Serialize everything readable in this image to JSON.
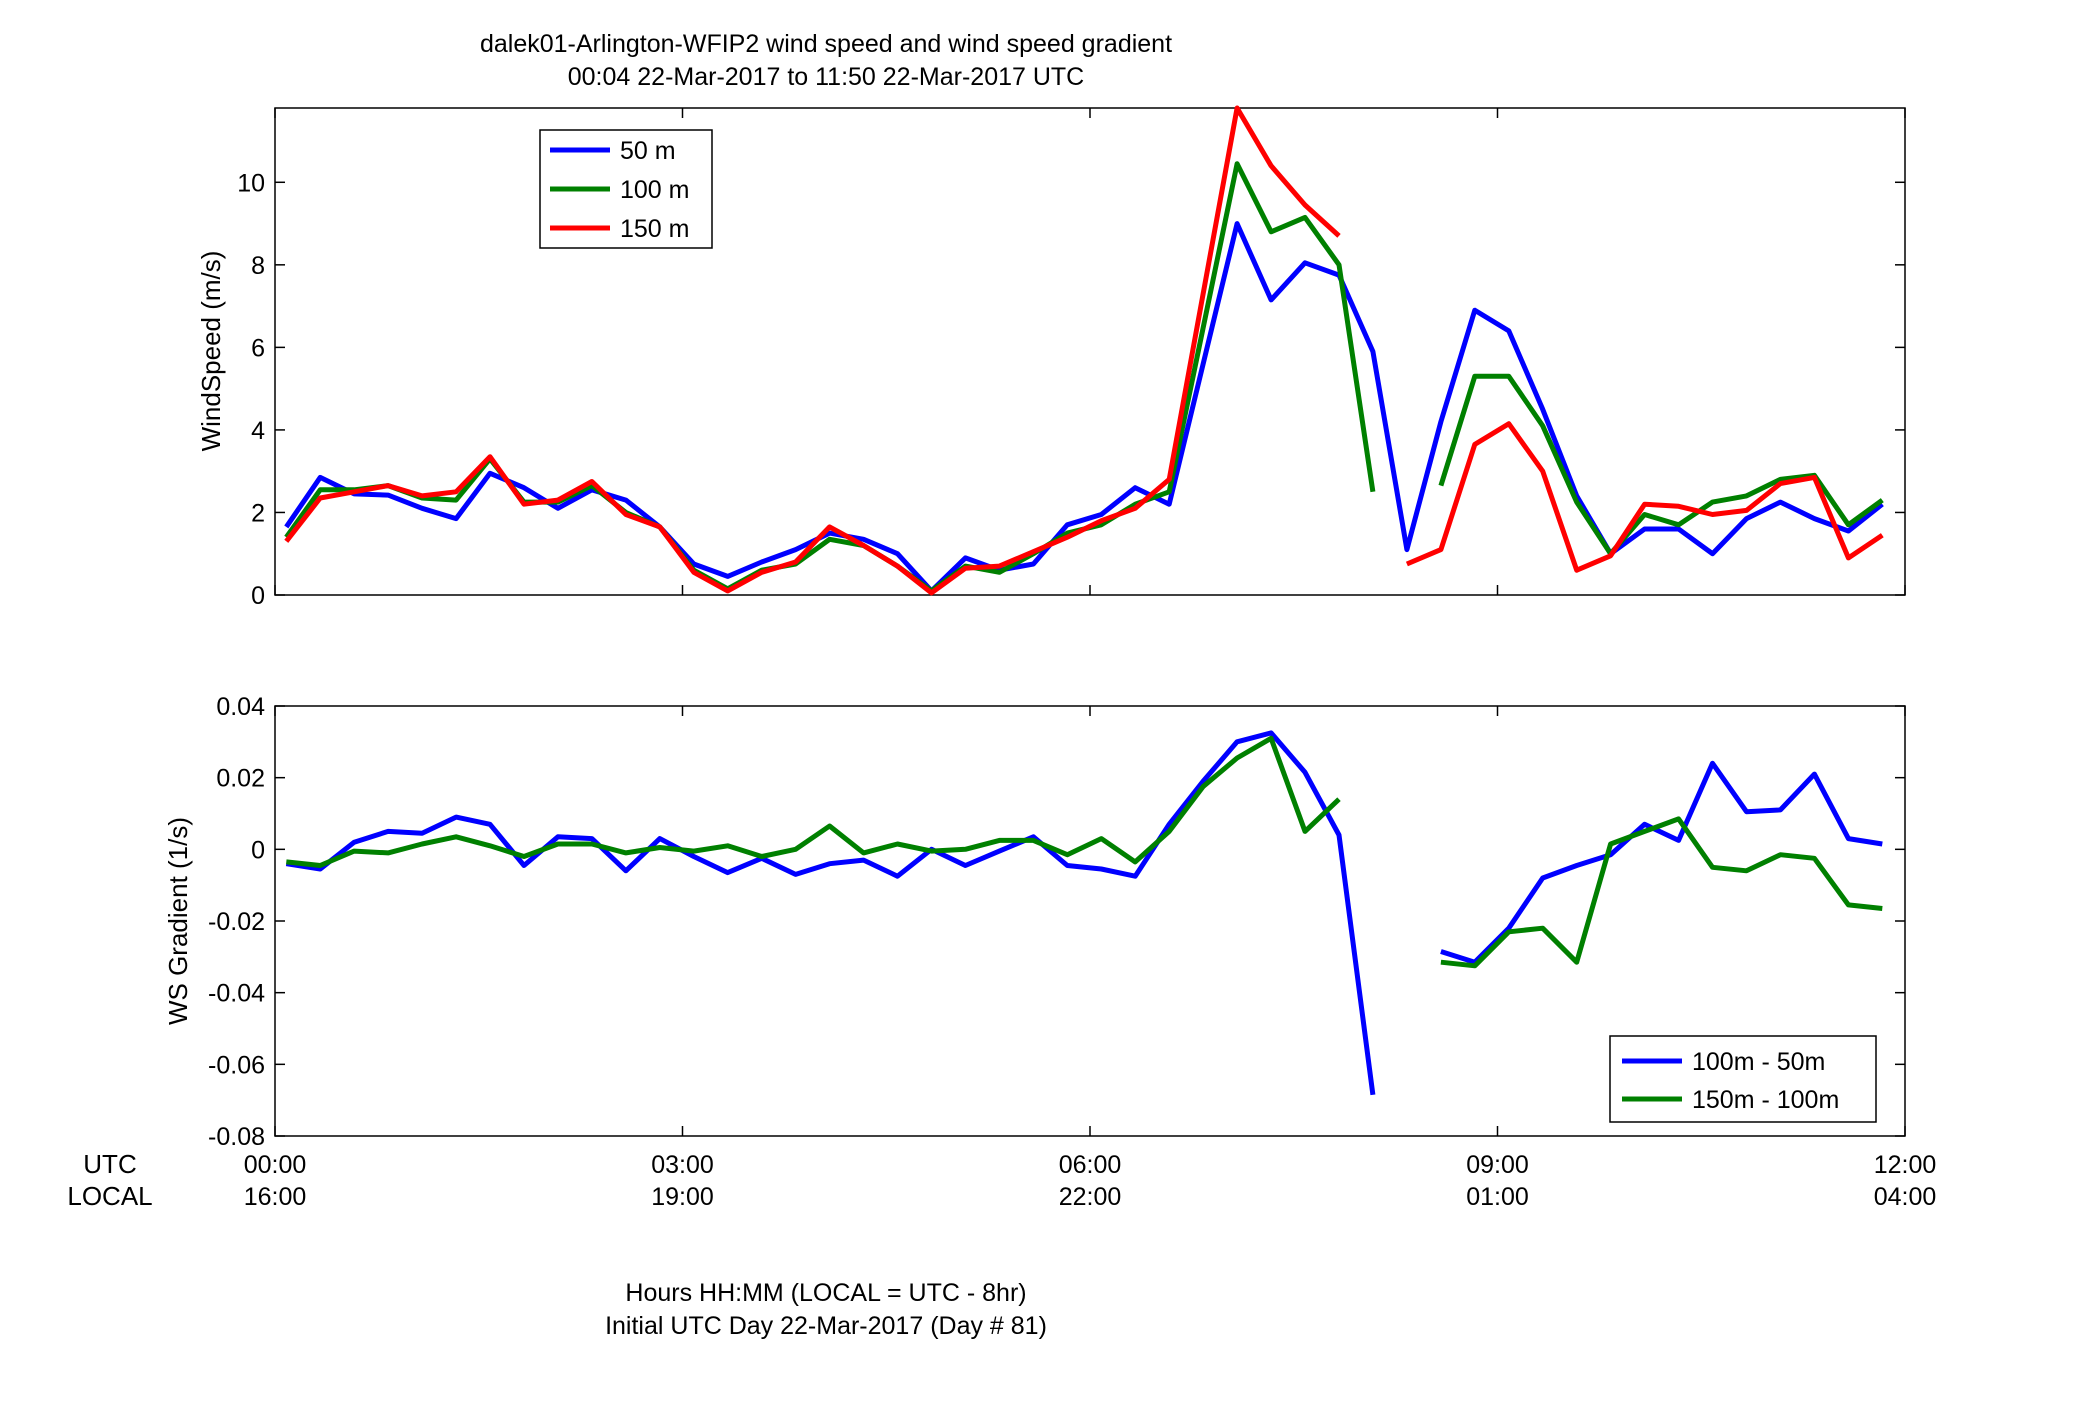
{
  "figure": {
    "title_line1": "dalek01-Arlington-WFIP2  wind speed and wind speed gradient",
    "title_line2": "00:04 22-Mar-2017 to 11:50 22-Mar-2017  UTC",
    "xlabel_line1": "Hours HH:MM  (LOCAL = UTC - 8hr)",
    "xlabel_line2": "Initial UTC Day 22-Mar-2017 (Day # 81)",
    "row_label_utc": "UTC",
    "row_label_local": "LOCAL",
    "utc_ticks": [
      "00:00",
      "03:00",
      "06:00",
      "09:00",
      "12:00"
    ],
    "local_ticks": [
      "16:00",
      "19:00",
      "22:00",
      "01:00",
      "04:00"
    ]
  },
  "chart_data": [
    {
      "type": "line",
      "ylabel": "WindSpeed (m/s)",
      "xlim": [
        0,
        12
      ],
      "ylim": [
        0,
        11.8
      ],
      "yticks": [
        0,
        2,
        4,
        6,
        8,
        10
      ],
      "legend_position": "top-left",
      "series": [
        {
          "name": "50 m",
          "color": "#0000ff",
          "points": [
            [
              0.083,
              1.65
            ],
            [
              0.333,
              2.85
            ],
            [
              0.583,
              2.45
            ],
            [
              0.833,
              2.42
            ],
            [
              1.083,
              2.1
            ],
            [
              1.333,
              1.85
            ],
            [
              1.583,
              2.95
            ],
            [
              1.833,
              2.6
            ],
            [
              2.083,
              2.1
            ],
            [
              2.333,
              2.55
            ],
            [
              2.583,
              2.3
            ],
            [
              2.833,
              1.65
            ],
            [
              3.083,
              0.75
            ],
            [
              3.333,
              0.45
            ],
            [
              3.583,
              0.8
            ],
            [
              3.833,
              1.1
            ],
            [
              4.083,
              1.5
            ],
            [
              4.333,
              1.35
            ],
            [
              4.583,
              1.0
            ],
            [
              4.833,
              0.1
            ],
            [
              5.083,
              0.9
            ],
            [
              5.333,
              0.6
            ],
            [
              5.583,
              0.75
            ],
            [
              5.833,
              1.7
            ],
            [
              6.083,
              1.95
            ],
            [
              6.333,
              2.6
            ],
            [
              6.583,
              2.2
            ],
            [
              7.083,
              9.0
            ],
            [
              7.333,
              7.15
            ],
            [
              7.583,
              8.05
            ],
            [
              7.833,
              7.75
            ],
            [
              8.083,
              5.9
            ],
            [
              8.333,
              1.1
            ],
            [
              8.583,
              4.2
            ],
            [
              8.833,
              6.9
            ],
            [
              9.083,
              6.4
            ],
            [
              9.333,
              4.5
            ],
            [
              9.583,
              2.4
            ],
            [
              9.833,
              1.0
            ],
            [
              10.083,
              1.6
            ],
            [
              10.333,
              1.6
            ],
            [
              10.583,
              1.0
            ],
            [
              10.833,
              1.85
            ],
            [
              11.083,
              2.25
            ],
            [
              11.333,
              1.85
            ],
            [
              11.583,
              1.55
            ],
            [
              11.833,
              2.2
            ]
          ]
        },
        {
          "name": "100 m",
          "color": "#008000",
          "points": [
            [
              0.083,
              1.4
            ],
            [
              0.333,
              2.55
            ],
            [
              0.583,
              2.55
            ],
            [
              0.833,
              2.65
            ],
            [
              1.083,
              2.35
            ],
            [
              1.333,
              2.3
            ],
            [
              1.583,
              3.3
            ],
            [
              1.833,
              2.25
            ],
            [
              2.083,
              2.25
            ],
            [
              2.333,
              2.65
            ],
            [
              2.583,
              2.0
            ],
            [
              2.833,
              1.65
            ],
            [
              3.083,
              0.6
            ],
            [
              3.333,
              0.15
            ],
            [
              3.583,
              0.6
            ],
            [
              3.833,
              0.75
            ],
            [
              4.083,
              1.35
            ],
            [
              4.333,
              1.2
            ],
            [
              4.583,
              0.7
            ],
            [
              4.833,
              0.1
            ],
            [
              5.083,
              0.7
            ],
            [
              5.333,
              0.55
            ],
            [
              5.583,
              1.0
            ],
            [
              5.833,
              1.5
            ],
            [
              6.083,
              1.7
            ],
            [
              6.333,
              2.2
            ],
            [
              6.583,
              2.5
            ],
            [
              7.083,
              10.45
            ],
            [
              7.333,
              8.8
            ],
            [
              7.583,
              9.15
            ],
            [
              7.833,
              8.0
            ],
            [
              8.083,
              2.5
            ],
            [
              null,
              null
            ],
            [
              8.583,
              2.65
            ],
            [
              8.833,
              5.3
            ],
            [
              9.083,
              5.3
            ],
            [
              9.333,
              4.1
            ],
            [
              9.583,
              2.25
            ],
            [
              9.833,
              1.0
            ],
            [
              10.083,
              1.95
            ],
            [
              10.333,
              1.7
            ],
            [
              10.583,
              2.25
            ],
            [
              10.833,
              2.4
            ],
            [
              11.083,
              2.8
            ],
            [
              11.333,
              2.9
            ],
            [
              11.583,
              1.7
            ],
            [
              11.833,
              2.3
            ]
          ]
        },
        {
          "name": "150 m",
          "color": "#ff0000",
          "points": [
            [
              0.083,
              1.3
            ],
            [
              0.333,
              2.35
            ],
            [
              0.583,
              2.5
            ],
            [
              0.833,
              2.65
            ],
            [
              1.083,
              2.4
            ],
            [
              1.333,
              2.5
            ],
            [
              1.583,
              3.35
            ],
            [
              1.833,
              2.2
            ],
            [
              2.083,
              2.3
            ],
            [
              2.333,
              2.75
            ],
            [
              2.583,
              1.95
            ],
            [
              2.833,
              1.65
            ],
            [
              3.083,
              0.55
            ],
            [
              3.333,
              0.1
            ],
            [
              3.583,
              0.55
            ],
            [
              3.833,
              0.8
            ],
            [
              4.083,
              1.65
            ],
            [
              4.333,
              1.2
            ],
            [
              4.583,
              0.7
            ],
            [
              4.833,
              0.05
            ],
            [
              5.083,
              0.65
            ],
            [
              5.333,
              0.7
            ],
            [
              5.583,
              1.05
            ],
            [
              5.833,
              1.4
            ],
            [
              6.083,
              1.8
            ],
            [
              6.333,
              2.1
            ],
            [
              6.583,
              2.8
            ],
            [
              7.083,
              11.8
            ],
            [
              7.333,
              10.4
            ],
            [
              7.583,
              9.45
            ],
            [
              7.833,
              8.7
            ],
            [
              null,
              null
            ],
            [
              8.333,
              0.75
            ],
            [
              8.583,
              1.1
            ],
            [
              8.833,
              3.65
            ],
            [
              9.083,
              4.15
            ],
            [
              9.333,
              3.0
            ],
            [
              9.583,
              0.6
            ],
            [
              9.833,
              0.95
            ],
            [
              10.083,
              2.2
            ],
            [
              10.333,
              2.15
            ],
            [
              10.583,
              1.95
            ],
            [
              10.833,
              2.05
            ],
            [
              11.083,
              2.7
            ],
            [
              11.333,
              2.85
            ],
            [
              11.583,
              0.9
            ],
            [
              11.833,
              1.45
            ]
          ]
        }
      ]
    },
    {
      "type": "line",
      "ylabel": "WS Gradient (1/s)",
      "xlim": [
        0,
        12
      ],
      "ylim": [
        -0.08,
        0.04
      ],
      "yticks": [
        -0.08,
        -0.06,
        -0.04,
        -0.02,
        0,
        0.02,
        0.04
      ],
      "ytick_labels": [
        "-0.08",
        "-0.06",
        "-0.04",
        "-0.02",
        "0",
        "0.02",
        "0.04"
      ],
      "legend_position": "bottom-right",
      "series": [
        {
          "name": "100m - 50m",
          "color": "#0000ff",
          "points": [
            [
              0.083,
              -0.004
            ],
            [
              0.333,
              -0.0055
            ],
            [
              0.583,
              0.002
            ],
            [
              0.833,
              0.005
            ],
            [
              1.083,
              0.0045
            ],
            [
              1.333,
              0.009
            ],
            [
              1.583,
              0.007
            ],
            [
              1.833,
              -0.0045
            ],
            [
              2.083,
              0.0035
            ],
            [
              2.333,
              0.003
            ],
            [
              2.583,
              -0.006
            ],
            [
              2.833,
              0.003
            ],
            [
              3.083,
              -0.002
            ],
            [
              3.333,
              -0.0065
            ],
            [
              3.583,
              -0.0025
            ],
            [
              3.833,
              -0.007
            ],
            [
              4.083,
              -0.004
            ],
            [
              4.333,
              -0.003
            ],
            [
              4.583,
              -0.0075
            ],
            [
              4.833,
              0.0
            ],
            [
              5.083,
              -0.0045
            ],
            [
              5.333,
              -0.0005
            ],
            [
              5.583,
              0.0035
            ],
            [
              5.833,
              -0.0045
            ],
            [
              6.083,
              -0.0055
            ],
            [
              6.333,
              -0.0075
            ],
            [
              6.583,
              0.007
            ],
            [
              6.833,
              0.019
            ],
            [
              7.083,
              0.03
            ],
            [
              7.333,
              0.0325
            ],
            [
              7.583,
              0.0215
            ],
            [
              7.833,
              0.004
            ],
            [
              8.083,
              -0.0685
            ],
            [
              null,
              null
            ],
            [
              8.583,
              -0.0285
            ],
            [
              8.833,
              -0.0315
            ],
            [
              9.083,
              -0.022
            ],
            [
              9.333,
              -0.008
            ],
            [
              9.583,
              -0.0045
            ],
            [
              9.833,
              -0.0015
            ],
            [
              10.083,
              0.007
            ],
            [
              10.333,
              0.0025
            ],
            [
              10.583,
              0.024
            ],
            [
              10.833,
              0.0105
            ],
            [
              11.083,
              0.011
            ],
            [
              11.333,
              0.021
            ],
            [
              11.583,
              0.003
            ],
            [
              11.833,
              0.0015
            ]
          ]
        },
        {
          "name": "150m - 100m",
          "color": "#008000",
          "points": [
            [
              0.083,
              -0.0035
            ],
            [
              0.333,
              -0.0045
            ],
            [
              0.583,
              -0.0005
            ],
            [
              0.833,
              -0.001
            ],
            [
              1.083,
              0.0015
            ],
            [
              1.333,
              0.0035
            ],
            [
              1.583,
              0.001
            ],
            [
              1.833,
              -0.002
            ],
            [
              2.083,
              0.0015
            ],
            [
              2.333,
              0.0015
            ],
            [
              2.583,
              -0.001
            ],
            [
              2.833,
              0.0005
            ],
            [
              3.083,
              -0.0005
            ],
            [
              3.333,
              0.001
            ],
            [
              3.583,
              -0.002
            ],
            [
              3.833,
              0.0
            ],
            [
              4.083,
              0.0065
            ],
            [
              4.333,
              -0.001
            ],
            [
              4.583,
              0.0015
            ],
            [
              4.833,
              -0.0005
            ],
            [
              5.083,
              0.0
            ],
            [
              5.333,
              0.0025
            ],
            [
              5.583,
              0.0025
            ],
            [
              5.833,
              -0.0015
            ],
            [
              6.083,
              0.003
            ],
            [
              6.333,
              -0.0035
            ],
            [
              6.583,
              0.005
            ],
            [
              6.833,
              0.0175
            ],
            [
              7.083,
              0.0255
            ],
            [
              7.333,
              0.031
            ],
            [
              7.583,
              0.005
            ],
            [
              7.833,
              0.014
            ],
            [
              null,
              null
            ],
            [
              8.583,
              -0.0315
            ],
            [
              8.833,
              -0.0325
            ],
            [
              9.083,
              -0.023
            ],
            [
              9.333,
              -0.022
            ],
            [
              9.583,
              -0.0315
            ],
            [
              9.833,
              0.0015
            ],
            [
              10.083,
              0.005
            ],
            [
              10.333,
              0.0085
            ],
            [
              10.583,
              -0.005
            ],
            [
              10.833,
              -0.006
            ],
            [
              11.083,
              -0.0015
            ],
            [
              11.333,
              -0.0025
            ],
            [
              11.583,
              -0.0155
            ],
            [
              11.833,
              -0.0165
            ]
          ]
        }
      ]
    }
  ]
}
